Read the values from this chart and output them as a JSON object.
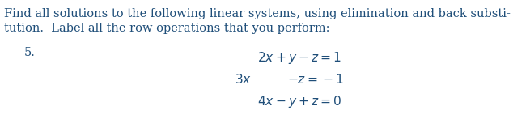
{
  "background_color": "#ffffff",
  "intro_line1": "Find all solutions to the following linear systems, using elimination and back substi-",
  "intro_line2": "tution.  Label all the row operations that you perform:",
  "problem_number": "5.",
  "eq1": "$2x + y - z = 1$",
  "eq2_part1": "$3x$",
  "eq2_part2": "$- z = -1$",
  "eq3": "$4x - y + z = 0$",
  "text_color": "#1f4e79",
  "font_size_body": 10.5,
  "font_size_eq": 11.2
}
